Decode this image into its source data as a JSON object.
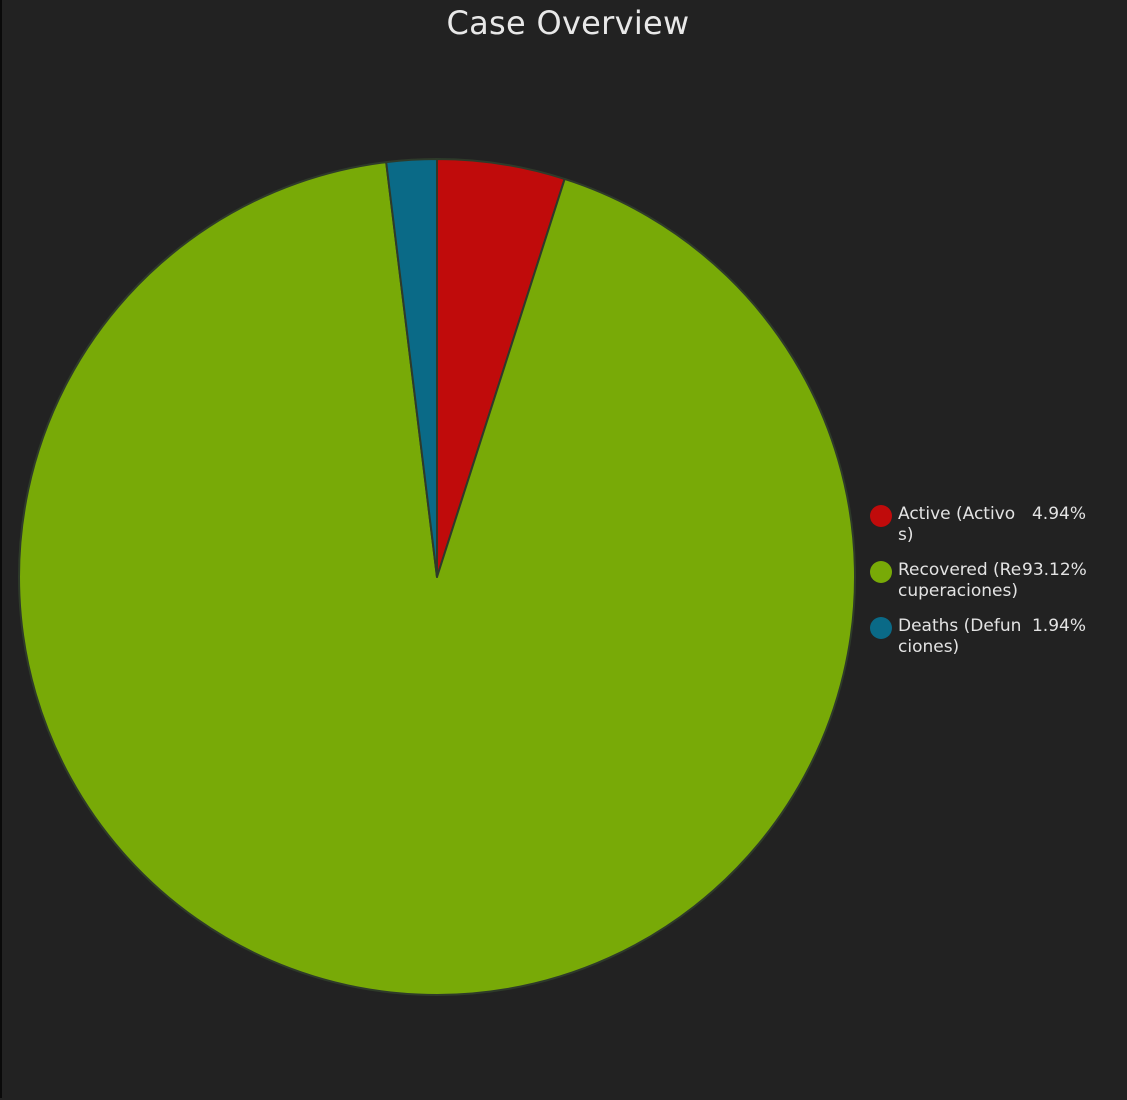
{
  "chart_data": {
    "type": "pie",
    "title": "Case Overview",
    "legend_position": "right",
    "slices": [
      {
        "label": "Active (Activos)",
        "value": 4.94,
        "display": "4.94%",
        "color": "#c00b0b"
      },
      {
        "label": "Recovered (Recuperaciones)",
        "value": 93.12,
        "display": "93.12%",
        "color": "#78aa07"
      },
      {
        "label": "Deaths (Defunciones)",
        "value": 1.94,
        "display": "1.94%",
        "color": "#0a6a87"
      }
    ]
  },
  "colors": {
    "background": "#222222",
    "slice_border": "#2e3a2a"
  }
}
